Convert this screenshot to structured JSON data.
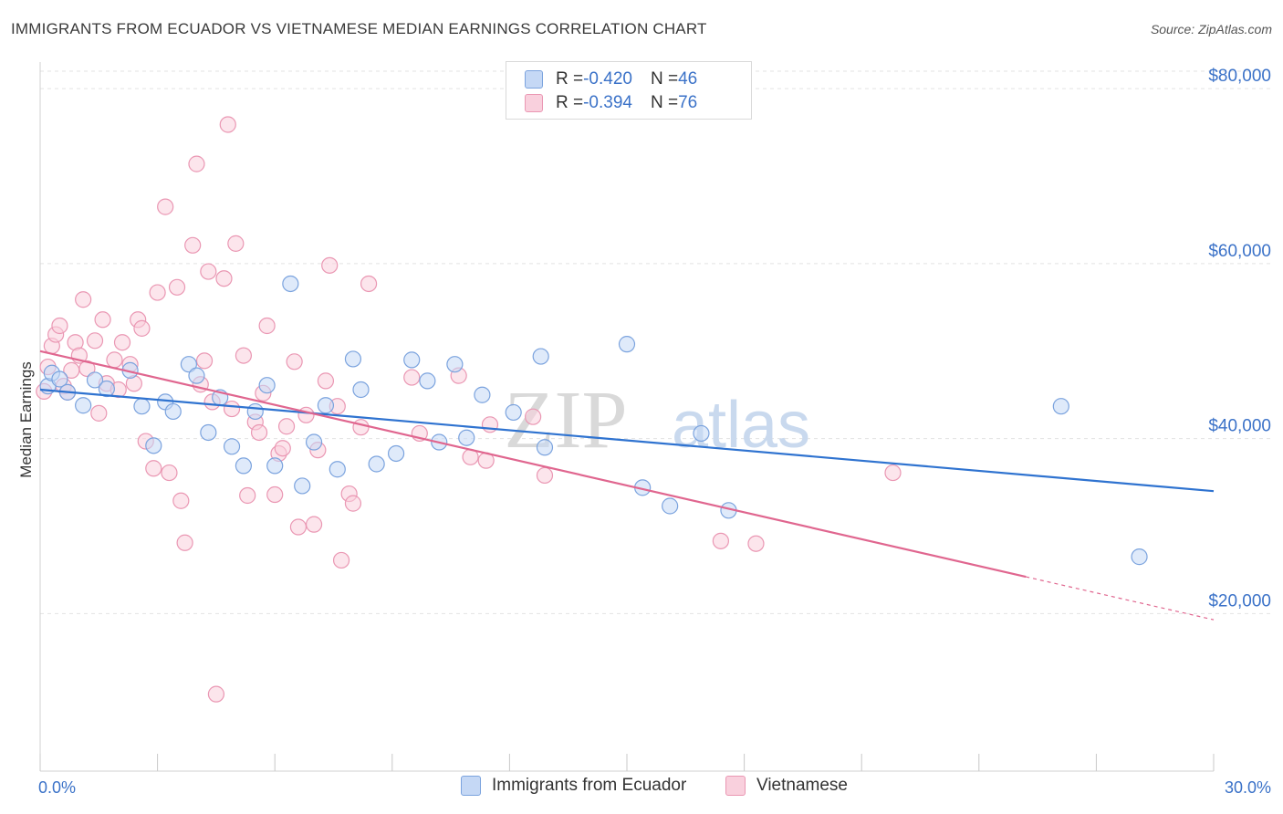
{
  "title": "IMMIGRANTS FROM ECUADOR VS VIETNAMESE MEDIAN EARNINGS CORRELATION CHART",
  "source": "Source: ZipAtlas.com",
  "watermark": {
    "zip": "ZIP",
    "atlas": "atlas"
  },
  "colors": {
    "blue_fill": "#c5d8f5",
    "blue_stroke": "#7ba3de",
    "blue_line": "#2f73d0",
    "pink_fill": "#f9d0dd",
    "pink_stroke": "#ea97b3",
    "pink_line": "#e0668f",
    "axis_text": "#3b72c8",
    "grid": "#e3e3e3"
  },
  "legend": {
    "series1": {
      "r_label": "R = ",
      "r_value": "-0.420",
      "n_label": "N = ",
      "n_value": "46"
    },
    "series2": {
      "r_label": "R = ",
      "r_value": "-0.394",
      "n_label": "N = ",
      "n_value": "76"
    }
  },
  "chart_data": {
    "type": "scatter",
    "xlabel": "",
    "ylabel": "Median Earnings",
    "xlim": [
      0,
      30
    ],
    "ylim": [
      2000,
      82000
    ],
    "x_tick_labels": [
      "0.0%",
      "30.0%"
    ],
    "y_ticks": [
      20000,
      40000,
      60000,
      80000
    ],
    "y_tick_labels": [
      "$20,000",
      "$40,000",
      "$60,000",
      "$80,000"
    ],
    "grid": true,
    "legend_position": "bottom",
    "series": [
      {
        "name": "Immigrants from Ecuador",
        "trend": {
          "x": [
            0,
            30
          ],
          "y": [
            45600,
            34000
          ],
          "solid_until": 30
        },
        "points": [
          [
            0.2,
            46000
          ],
          [
            0.3,
            47500
          ],
          [
            0.5,
            46800
          ],
          [
            0.7,
            45300
          ],
          [
            1.1,
            43800
          ],
          [
            1.4,
            46700
          ],
          [
            1.7,
            45700
          ],
          [
            2.3,
            47800
          ],
          [
            2.6,
            43700
          ],
          [
            2.9,
            39200
          ],
          [
            3.2,
            44200
          ],
          [
            3.4,
            43100
          ],
          [
            3.8,
            48500
          ],
          [
            4.0,
            47200
          ],
          [
            4.3,
            40700
          ],
          [
            4.6,
            44700
          ],
          [
            4.9,
            39100
          ],
          [
            5.2,
            36900
          ],
          [
            5.5,
            43100
          ],
          [
            5.8,
            46100
          ],
          [
            6.0,
            36900
          ],
          [
            6.4,
            57700
          ],
          [
            6.7,
            34600
          ],
          [
            7.0,
            39600
          ],
          [
            7.3,
            43800
          ],
          [
            7.6,
            36500
          ],
          [
            8.0,
            49100
          ],
          [
            8.2,
            45600
          ],
          [
            8.6,
            37100
          ],
          [
            9.1,
            38300
          ],
          [
            9.5,
            49000
          ],
          [
            9.9,
            46600
          ],
          [
            10.2,
            39600
          ],
          [
            10.6,
            48500
          ],
          [
            10.9,
            40100
          ],
          [
            11.3,
            45000
          ],
          [
            12.1,
            43000
          ],
          [
            12.8,
            49400
          ],
          [
            12.9,
            39000
          ],
          [
            15.0,
            50800
          ],
          [
            15.4,
            34400
          ],
          [
            16.1,
            32300
          ],
          [
            16.9,
            40600
          ],
          [
            17.6,
            31800
          ],
          [
            26.1,
            43700
          ],
          [
            28.1,
            26500
          ]
        ]
      },
      {
        "name": "Vietnamese",
        "trend": {
          "x": [
            0,
            30
          ],
          "y": [
            50000,
            19300
          ],
          "solid_until": 25.2
        },
        "points": [
          [
            0.1,
            45400
          ],
          [
            0.2,
            48200
          ],
          [
            0.3,
            50600
          ],
          [
            0.4,
            51900
          ],
          [
            0.5,
            52900
          ],
          [
            0.6,
            46000
          ],
          [
            0.7,
            45300
          ],
          [
            0.8,
            47800
          ],
          [
            0.9,
            51000
          ],
          [
            1.0,
            49500
          ],
          [
            1.1,
            55900
          ],
          [
            1.2,
            48000
          ],
          [
            1.4,
            51200
          ],
          [
            1.5,
            42900
          ],
          [
            1.6,
            53600
          ],
          [
            1.7,
            46300
          ],
          [
            1.9,
            49000
          ],
          [
            2.0,
            45600
          ],
          [
            2.1,
            51000
          ],
          [
            2.3,
            48500
          ],
          [
            2.4,
            46300
          ],
          [
            2.5,
            53600
          ],
          [
            2.6,
            52600
          ],
          [
            2.7,
            39700
          ],
          [
            2.9,
            36600
          ],
          [
            3.0,
            56700
          ],
          [
            3.2,
            66500
          ],
          [
            3.3,
            36100
          ],
          [
            3.5,
            57300
          ],
          [
            3.6,
            32900
          ],
          [
            3.7,
            28100
          ],
          [
            3.9,
            62100
          ],
          [
            4.0,
            71400
          ],
          [
            4.1,
            46200
          ],
          [
            4.2,
            48900
          ],
          [
            4.3,
            59100
          ],
          [
            4.4,
            44200
          ],
          [
            4.5,
            10800
          ],
          [
            4.7,
            58300
          ],
          [
            4.8,
            75900
          ],
          [
            4.9,
            43400
          ],
          [
            5.0,
            62300
          ],
          [
            5.2,
            49500
          ],
          [
            5.3,
            33500
          ],
          [
            5.5,
            41900
          ],
          [
            5.6,
            40700
          ],
          [
            5.7,
            45200
          ],
          [
            5.8,
            52900
          ],
          [
            6.0,
            33600
          ],
          [
            6.1,
            38300
          ],
          [
            6.2,
            38900
          ],
          [
            6.3,
            41400
          ],
          [
            6.5,
            48800
          ],
          [
            6.6,
            29900
          ],
          [
            6.8,
            42700
          ],
          [
            7.0,
            30200
          ],
          [
            7.1,
            38700
          ],
          [
            7.3,
            46600
          ],
          [
            7.4,
            59800
          ],
          [
            7.6,
            43700
          ],
          [
            7.7,
            26100
          ],
          [
            7.9,
            33700
          ],
          [
            8.0,
            32600
          ],
          [
            8.2,
            41300
          ],
          [
            8.4,
            57700
          ],
          [
            9.5,
            47000
          ],
          [
            9.7,
            40600
          ],
          [
            10.7,
            47200
          ],
          [
            11.0,
            37900
          ],
          [
            11.4,
            37500
          ],
          [
            11.5,
            41600
          ],
          [
            12.6,
            42500
          ],
          [
            12.9,
            35800
          ],
          [
            17.4,
            28300
          ],
          [
            18.3,
            28000
          ],
          [
            21.8,
            36100
          ]
        ]
      }
    ]
  }
}
